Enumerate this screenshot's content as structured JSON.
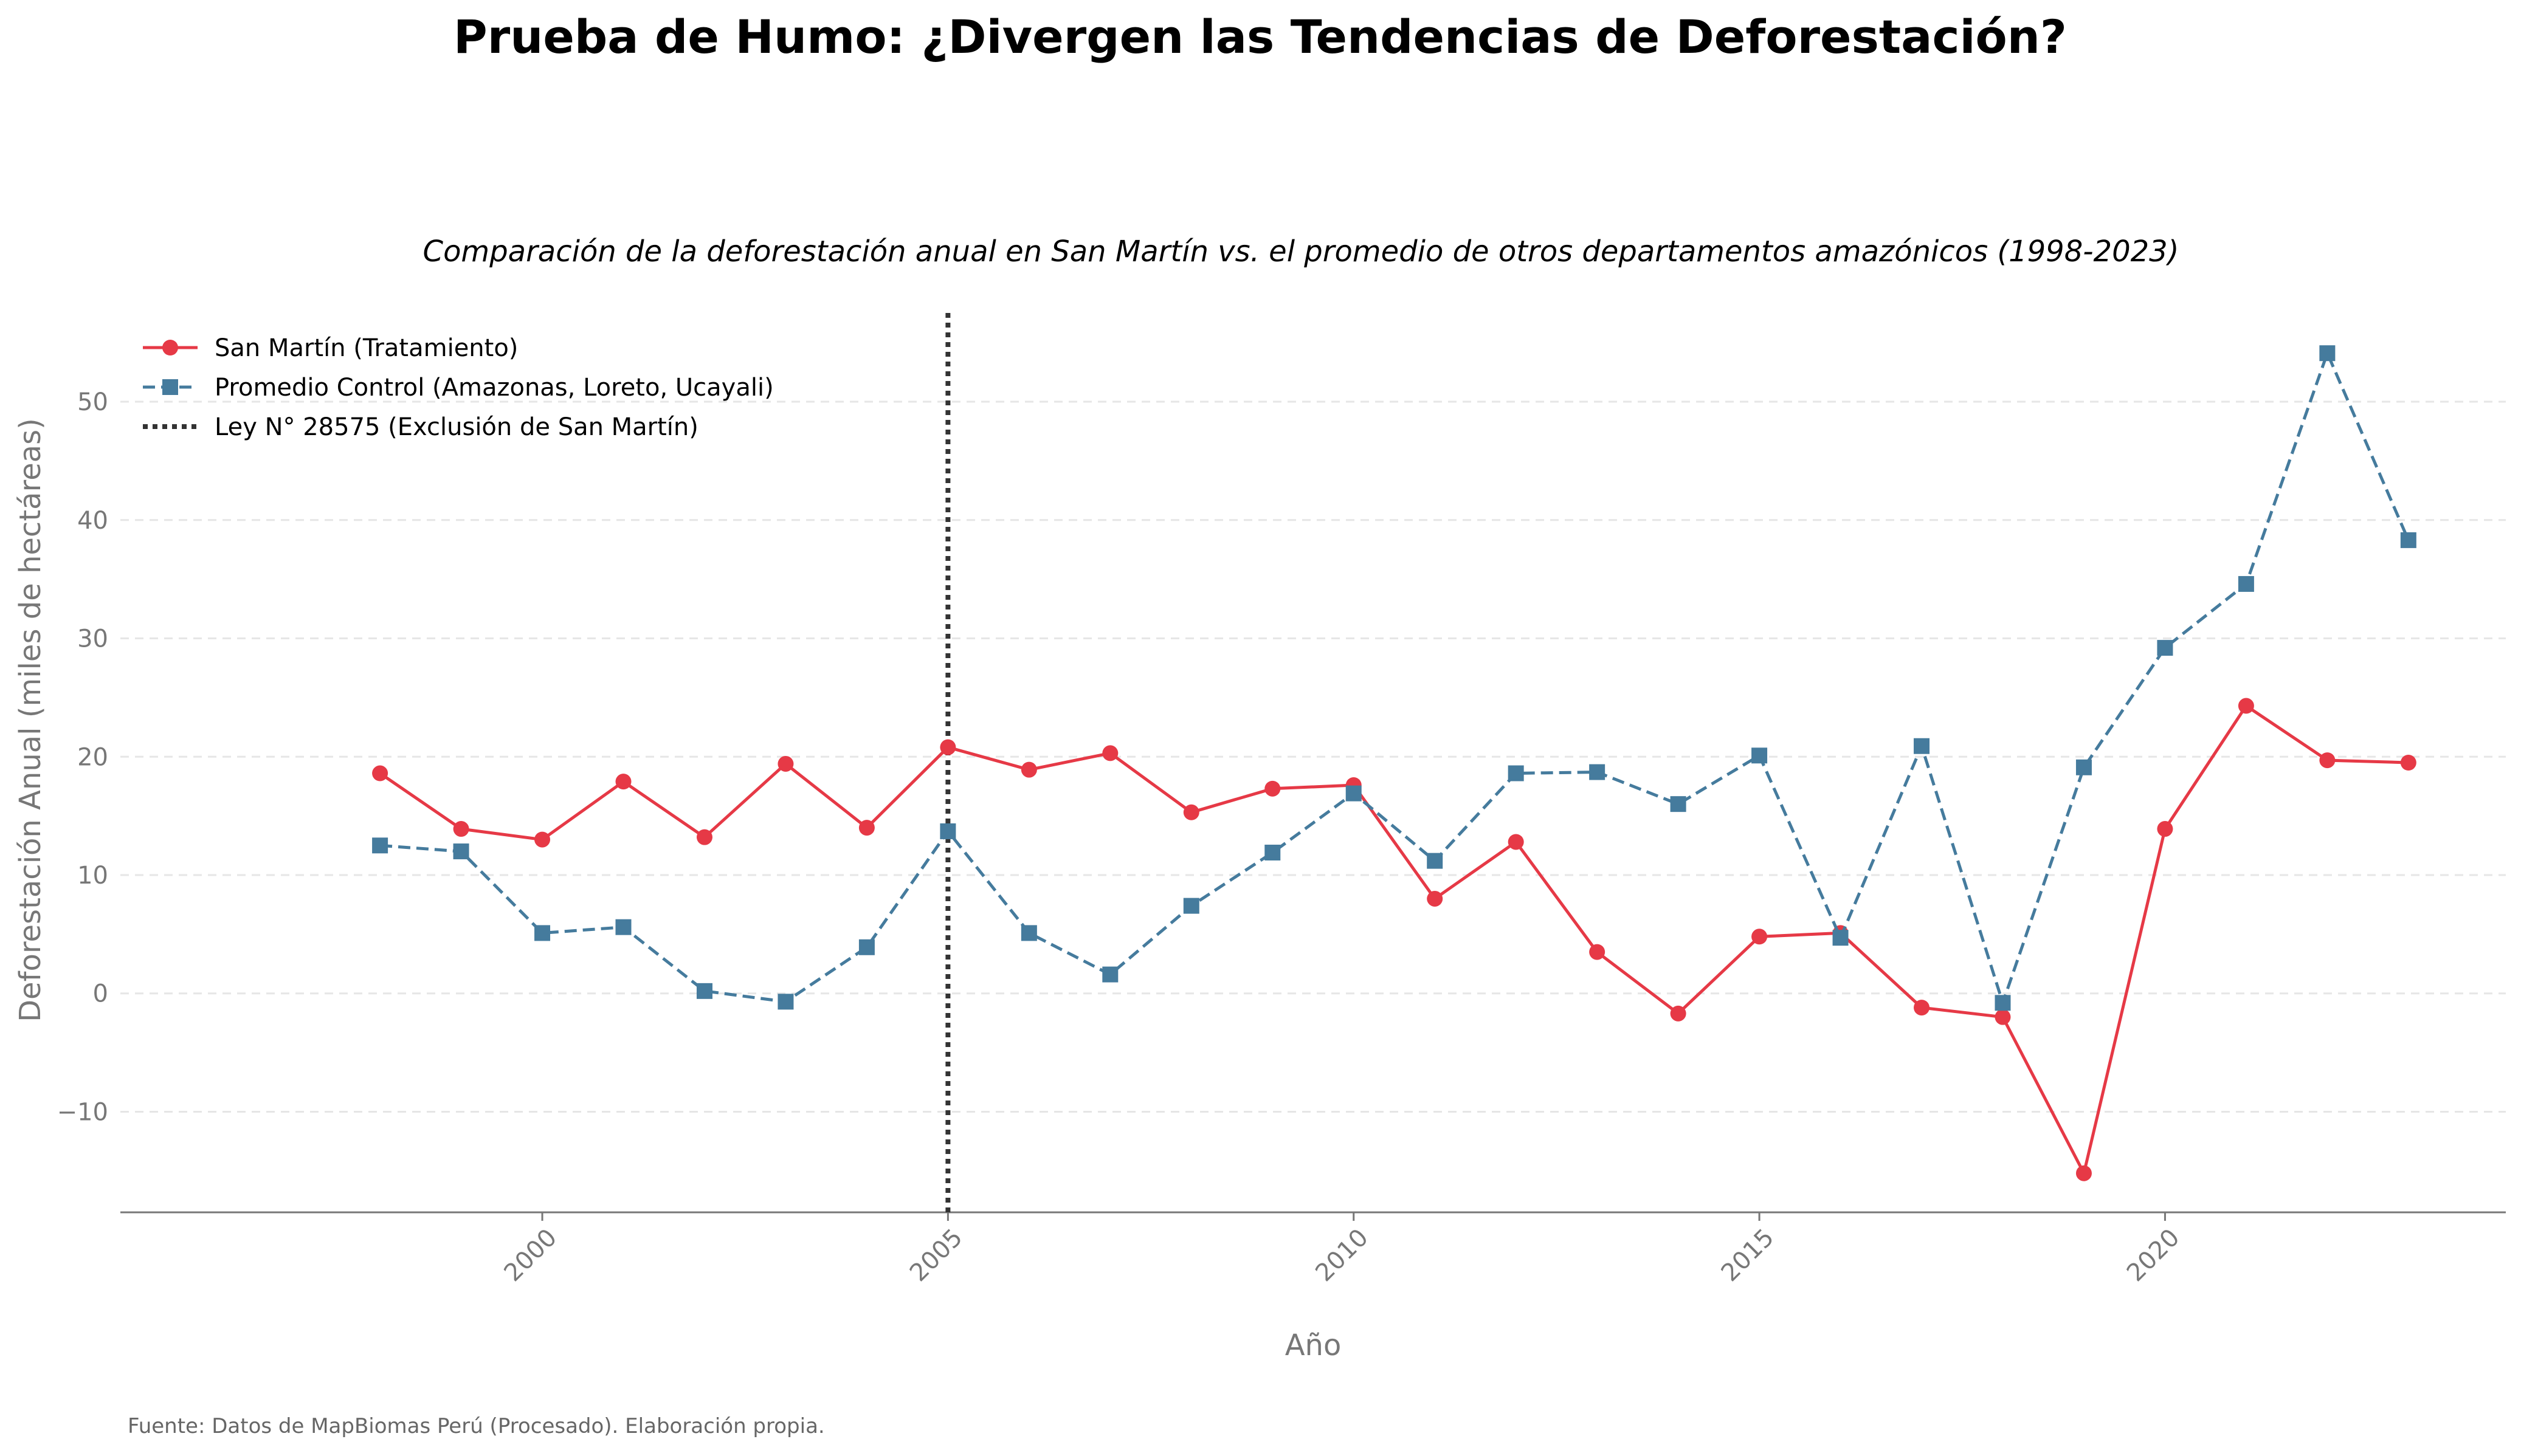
{
  "chart_data": {
    "type": "line",
    "title": "Prueba de Humo: ¿Divergen las Tendencias de Deforestación?",
    "subtitle": "Comparación de la deforestación anual en San Martín vs. el promedio de otros departamentos amazónicos (1998-2023)",
    "xlabel": "Año",
    "ylabel": "Deforestación Anual (miles de hectáreas)",
    "source": "Fuente: Datos de MapBiomas Perú (Procesado). Elaboración propia.",
    "xlim": [
      1994.8,
      2024.2
    ],
    "ylim": [
      -18.5,
      57.5
    ],
    "x_ticks": [
      2000,
      2005,
      2010,
      2015,
      2020
    ],
    "y_ticks": [
      -10,
      0,
      10,
      20,
      30,
      40,
      50
    ],
    "y_tick_labels": [
      "−10",
      "0",
      "10",
      "20",
      "30",
      "40",
      "50"
    ],
    "grid": "horizontal-dashed",
    "legend_position": "top-left",
    "x": [
      1998,
      1999,
      2000,
      2001,
      2002,
      2003,
      2004,
      2005,
      2006,
      2007,
      2008,
      2009,
      2010,
      2011,
      2012,
      2013,
      2014,
      2015,
      2016,
      2017,
      2018,
      2019,
      2020,
      2021,
      2022,
      2023
    ],
    "series": [
      {
        "name": "San Martín (Tratamiento)",
        "color": "#e63946",
        "style": "solid",
        "marker": "circle",
        "values": [
          18.6,
          13.9,
          13.0,
          17.9,
          13.2,
          19.4,
          14.0,
          20.8,
          18.9,
          20.3,
          15.3,
          17.3,
          17.6,
          8.0,
          12.8,
          3.5,
          -1.7,
          4.8,
          5.1,
          -1.2,
          -2.0,
          -15.2,
          13.9,
          24.3,
          19.7,
          19.5
        ]
      },
      {
        "name": "Promedio Control (Amazonas, Loreto, Ucayali)",
        "color": "#457b9d",
        "style": "dashed",
        "marker": "square",
        "values": [
          12.5,
          12.0,
          5.1,
          5.6,
          0.2,
          -0.7,
          3.9,
          13.7,
          5.1,
          1.6,
          7.4,
          11.9,
          16.9,
          11.2,
          18.6,
          18.7,
          16.0,
          20.1,
          4.7,
          20.9,
          -0.8,
          19.1,
          29.2,
          34.6,
          54.1,
          38.3
        ]
      }
    ],
    "annotations": [
      {
        "name": "Ley N° 28575 (Exclusión de San Martín)",
        "type": "vline",
        "x": 2005,
        "color": "#333333",
        "style": "dotted"
      }
    ]
  }
}
